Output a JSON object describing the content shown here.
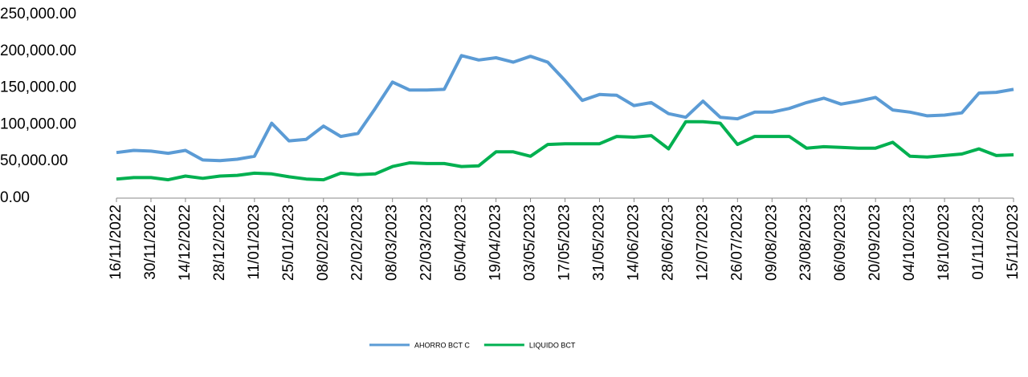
{
  "chart_data": {
    "type": "line",
    "x": [
      "2022-11-16",
      "2022-11-23",
      "2022-11-30",
      "2022-12-07",
      "2022-12-14",
      "2022-12-21",
      "2022-12-28",
      "2023-01-04",
      "2023-01-11",
      "2023-01-18",
      "2023-01-25",
      "2023-02-01",
      "2023-02-08",
      "2023-02-15",
      "2023-02-22",
      "2023-03-01",
      "2023-03-08",
      "2023-03-15",
      "2023-03-22",
      "2023-03-29",
      "2023-04-05",
      "2023-04-12",
      "2023-04-19",
      "2023-04-26",
      "2023-05-03",
      "2023-05-10",
      "2023-05-17",
      "2023-05-24",
      "2023-05-31",
      "2023-06-07",
      "2023-06-14",
      "2023-06-21",
      "2023-06-28",
      "2023-07-05",
      "2023-07-12",
      "2023-07-19",
      "2023-07-26",
      "2023-08-02",
      "2023-08-09",
      "2023-08-16",
      "2023-08-23",
      "2023-08-30",
      "2023-09-06",
      "2023-09-13",
      "2023-09-20",
      "2023-09-27",
      "2023-10-04",
      "2023-10-11",
      "2023-10-18",
      "2023-10-25",
      "2023-11-01",
      "2023-11-08",
      "2023-11-15"
    ],
    "series": [
      {
        "name": "AHORRO BCT C",
        "color": "#5b9bd5",
        "values": [
          62000,
          65000,
          64000,
          61000,
          65000,
          52000,
          51000,
          53000,
          57000,
          102000,
          78000,
          80000,
          98000,
          84000,
          88000,
          122000,
          158000,
          147000,
          147000,
          148000,
          194000,
          188000,
          191000,
          185000,
          193000,
          185000,
          160000,
          133000,
          141000,
          140000,
          126000,
          130000,
          115000,
          110000,
          132000,
          110000,
          108000,
          117000,
          117000,
          122000,
          130000,
          136000,
          128000,
          132000,
          137000,
          120000,
          117000,
          112000,
          113000,
          116000,
          143000,
          144000,
          148000
        ]
      },
      {
        "name": "LIQUIDO BCT",
        "color": "#00b050",
        "values": [
          26000,
          28000,
          28000,
          25000,
          30000,
          27000,
          30000,
          31000,
          34000,
          33000,
          29000,
          26000,
          25000,
          34000,
          32000,
          33000,
          43000,
          48000,
          47000,
          47000,
          43000,
          44000,
          63000,
          63000,
          57000,
          73000,
          74000,
          74000,
          74000,
          84000,
          83000,
          85000,
          67000,
          104000,
          104000,
          102000,
          73000,
          84000,
          84000,
          84000,
          68000,
          70000,
          69000,
          68000,
          68000,
          76000,
          57000,
          56000,
          58000,
          60000,
          67000,
          58000,
          59000
        ]
      }
    ],
    "xlim": [
      "2022-11-16",
      "2023-11-15"
    ],
    "xticks": [
      {
        "value": "2022-11-16",
        "label": "16/11/2022"
      },
      {
        "value": "2022-11-30",
        "label": "30/11/2022"
      },
      {
        "value": "2022-12-14",
        "label": "14/12/2022"
      },
      {
        "value": "2022-12-28",
        "label": "28/12/2022"
      },
      {
        "value": "2023-01-11",
        "label": "11/01/2023"
      },
      {
        "value": "2023-01-25",
        "label": "25/01/2023"
      },
      {
        "value": "2023-02-08",
        "label": "08/02/2023"
      },
      {
        "value": "2023-02-22",
        "label": "22/02/2023"
      },
      {
        "value": "2023-03-08",
        "label": "08/03/2023"
      },
      {
        "value": "2023-03-22",
        "label": "22/03/2023"
      },
      {
        "value": "2023-04-05",
        "label": "05/04/2023"
      },
      {
        "value": "2023-04-19",
        "label": "19/04/2023"
      },
      {
        "value": "2023-05-03",
        "label": "03/05/2023"
      },
      {
        "value": "2023-05-17",
        "label": "17/05/2023"
      },
      {
        "value": "2023-05-31",
        "label": "31/05/2023"
      },
      {
        "value": "2023-06-14",
        "label": "14/06/2023"
      },
      {
        "value": "2023-06-28",
        "label": "28/06/2023"
      },
      {
        "value": "2023-07-12",
        "label": "12/07/2023"
      },
      {
        "value": "2023-07-26",
        "label": "26/07/2023"
      },
      {
        "value": "2023-08-09",
        "label": "09/08/2023"
      },
      {
        "value": "2023-08-23",
        "label": "23/08/2023"
      },
      {
        "value": "2023-09-06",
        "label": "06/09/2023"
      },
      {
        "value": "2023-09-20",
        "label": "20/09/2023"
      },
      {
        "value": "2023-10-04",
        "label": "04/10/2023"
      },
      {
        "value": "2023-10-18",
        "label": "18/10/2023"
      },
      {
        "value": "2023-11-01",
        "label": "01/11/2023"
      },
      {
        "value": "2023-11-15",
        "label": "15/11/2023"
      }
    ],
    "ylim": [
      0,
      250000
    ],
    "yticks": [
      {
        "value": 0,
        "label": "0.00"
      },
      {
        "value": 50000,
        "label": "50,000.00"
      },
      {
        "value": 100000,
        "label": "100,000.00"
      },
      {
        "value": 150000,
        "label": "150,000.00"
      },
      {
        "value": 200000,
        "label": "200,000.00"
      },
      {
        "value": 250000,
        "label": "250,000.00"
      }
    ],
    "grid": false,
    "legend": "bottom"
  }
}
